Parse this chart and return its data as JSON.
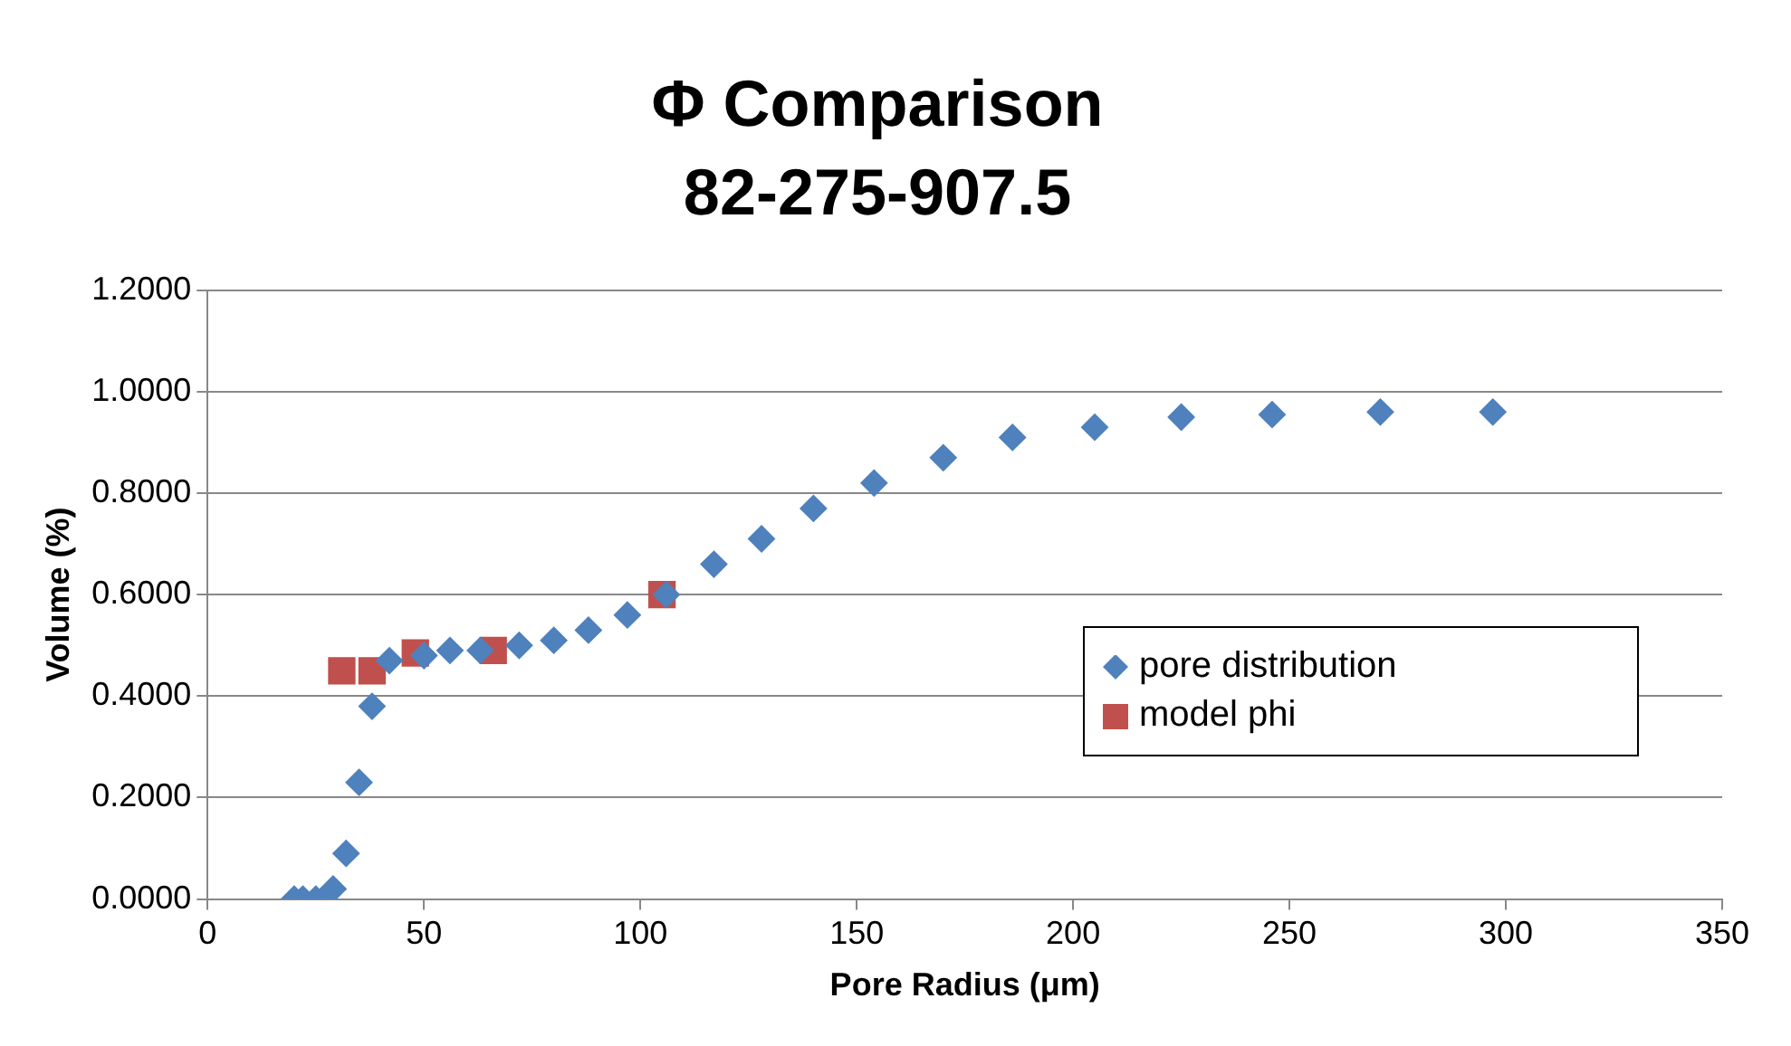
{
  "chart_data": {
    "type": "scatter",
    "title": "Φ Comparison",
    "subtitle": "82-275-907.5",
    "xlabel": "Pore Radius (μm)",
    "ylabel": "Volume (%)",
    "xlim": [
      0,
      350
    ],
    "xticks": [
      0,
      50,
      100,
      150,
      200,
      250,
      300,
      350
    ],
    "ylim": [
      0,
      1.2
    ],
    "yticks": [
      {
        "value": 0,
        "label": "0.0000"
      },
      {
        "value": 0.2,
        "label": "0.2000"
      },
      {
        "value": 0.4,
        "label": "0.4000"
      },
      {
        "value": 0.6,
        "label": "0.6000"
      },
      {
        "value": 0.8,
        "label": "0.8000"
      },
      {
        "value": 1,
        "label": "1.0000"
      },
      {
        "value": 1.2,
        "label": "1.2000"
      }
    ],
    "grid": "y",
    "legend": "right",
    "series": [
      {
        "name": "pore distribution",
        "color": "#4f81bd",
        "marker": "diamond",
        "x": [
          20,
          22,
          25,
          27,
          29,
          32,
          35,
          38,
          42,
          50,
          56,
          63,
          72,
          80,
          88,
          97,
          106,
          117,
          128,
          140,
          154,
          170,
          186,
          205,
          225,
          246,
          271,
          297
        ],
        "values": [
          0,
          0,
          0,
          0,
          0.02,
          0.09,
          0.23,
          0.38,
          0.47,
          0.48,
          0.49,
          0.49,
          0.5,
          0.51,
          0.53,
          0.56,
          0.6,
          0.66,
          0.71,
          0.77,
          0.82,
          0.87,
          0.91,
          0.93,
          0.95,
          0.955,
          0.96,
          0.96
        ]
      },
      {
        "name": "model phi",
        "color": "#c0504d",
        "marker": "square",
        "x": [
          31,
          38,
          48,
          66,
          105
        ],
        "values": [
          0.45,
          0.45,
          0.485,
          0.49,
          0.6
        ]
      }
    ]
  }
}
